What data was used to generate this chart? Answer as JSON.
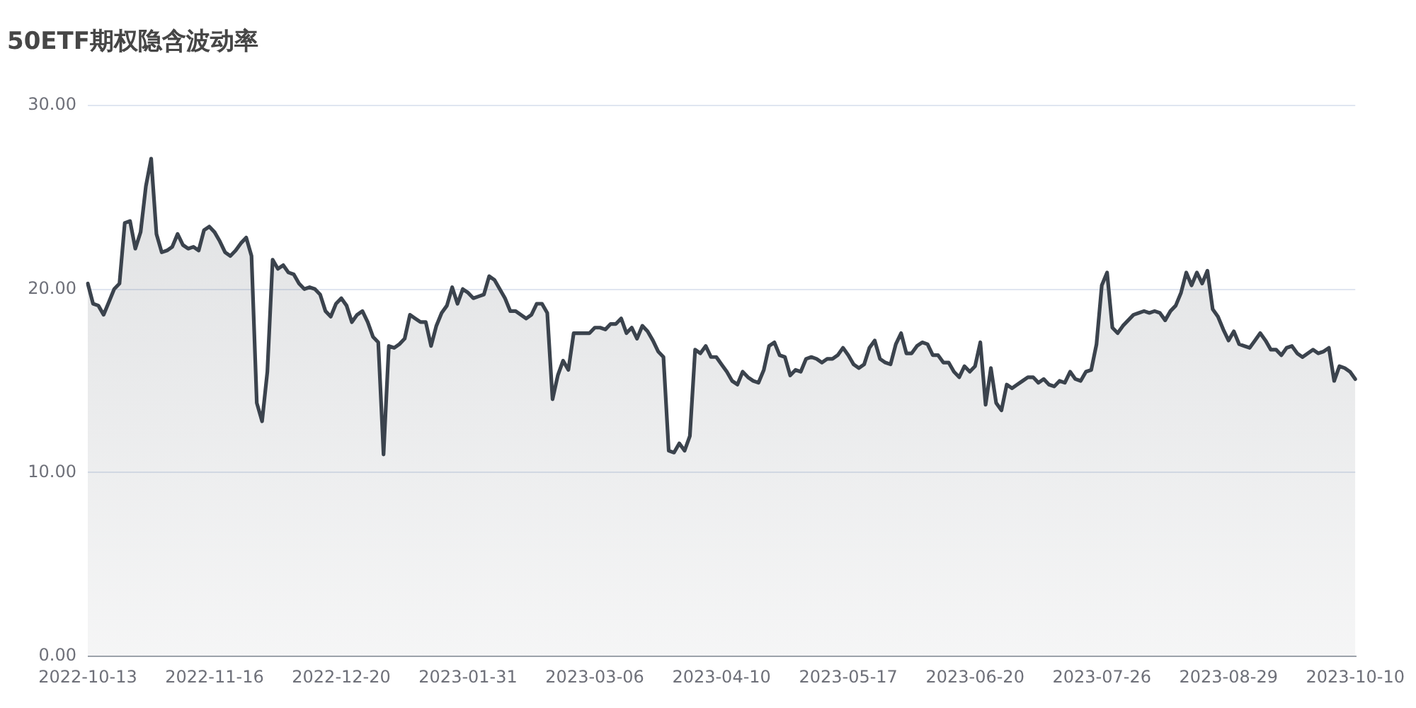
{
  "chart_data": {
    "type": "area",
    "title": "50ETF期权隐含波动率",
    "categories": [
      "2022-10-13",
      null,
      null,
      null,
      null,
      null,
      null,
      null,
      null,
      null,
      null,
      null,
      null,
      null,
      null,
      null,
      null,
      null,
      null,
      null,
      null,
      null,
      null,
      null,
      "2022-11-16",
      null,
      null,
      null,
      null,
      null,
      null,
      null,
      null,
      null,
      null,
      null,
      null,
      null,
      null,
      null,
      null,
      null,
      null,
      null,
      null,
      null,
      null,
      null,
      "2022-12-20",
      null,
      null,
      null,
      null,
      null,
      null,
      null,
      null,
      null,
      null,
      null,
      null,
      null,
      null,
      null,
      null,
      null,
      null,
      null,
      null,
      null,
      null,
      null,
      "2023-01-31",
      null,
      null,
      null,
      null,
      null,
      null,
      null,
      null,
      null,
      null,
      null,
      null,
      null,
      null,
      null,
      null,
      null,
      null,
      null,
      null,
      null,
      null,
      null,
      "2023-03-06",
      null,
      null,
      null,
      null,
      null,
      null,
      null,
      null,
      null,
      null,
      null,
      null,
      null,
      null,
      null,
      null,
      null,
      null,
      null,
      null,
      null,
      null,
      null,
      "2023-04-10",
      null,
      null,
      null,
      null,
      null,
      null,
      null,
      null,
      null,
      null,
      null,
      null,
      null,
      null,
      null,
      null,
      null,
      null,
      null,
      null,
      null,
      null,
      null,
      "2023-05-17",
      null,
      null,
      null,
      null,
      null,
      null,
      null,
      null,
      null,
      null,
      null,
      null,
      null,
      null,
      null,
      null,
      null,
      null,
      null,
      null,
      null,
      null,
      null,
      "2023-06-20",
      null,
      null,
      null,
      null,
      null,
      null,
      null,
      null,
      null,
      null,
      null,
      null,
      null,
      null,
      null,
      null,
      null,
      null,
      null,
      null,
      null,
      null,
      null,
      "2023-07-26",
      null,
      null,
      null,
      null,
      null,
      null,
      null,
      null,
      null,
      null,
      null,
      null,
      null,
      null,
      null,
      null,
      null,
      null,
      null,
      null,
      null,
      null,
      null,
      "2023-08-29",
      null,
      null,
      null,
      null,
      null,
      null,
      null,
      null,
      null,
      null,
      null,
      null,
      null,
      null,
      null,
      null,
      null,
      null,
      null,
      null,
      null,
      null,
      null,
      "2023-10-10"
    ],
    "values": [
      20.3,
      19.2,
      19.1,
      18.6,
      19.3,
      20.0,
      20.3,
      23.6,
      23.7,
      22.2,
      23.1,
      25.6,
      27.1,
      23.0,
      22.0,
      22.1,
      22.3,
      23.0,
      22.4,
      22.2,
      22.3,
      22.1,
      23.2,
      23.4,
      23.1,
      22.6,
      22.0,
      21.8,
      22.1,
      22.5,
      22.8,
      21.8,
      13.8,
      12.8,
      15.5,
      21.6,
      21.1,
      21.3,
      20.9,
      20.8,
      20.3,
      20.0,
      20.1,
      20.0,
      19.7,
      18.8,
      18.5,
      19.2,
      19.5,
      19.1,
      18.2,
      18.6,
      18.8,
      18.2,
      17.4,
      17.1,
      11.0,
      16.9,
      16.8,
      17.0,
      17.3,
      18.6,
      18.4,
      18.2,
      18.2,
      16.9,
      18.0,
      18.7,
      19.1,
      20.1,
      19.2,
      20.0,
      19.8,
      19.5,
      19.6,
      19.7,
      20.7,
      20.5,
      20.0,
      19.5,
      18.8,
      18.8,
      18.6,
      18.4,
      18.6,
      19.2,
      19.2,
      18.7,
      14.0,
      15.3,
      16.1,
      15.6,
      17.6,
      17.6,
      17.6,
      17.6,
      17.9,
      17.9,
      17.8,
      18.1,
      18.1,
      18.4,
      17.6,
      17.9,
      17.3,
      18.0,
      17.7,
      17.2,
      16.6,
      16.3,
      11.2,
      11.1,
      11.6,
      11.2,
      12.0,
      16.7,
      16.5,
      16.9,
      16.3,
      16.3,
      15.9,
      15.5,
      15.0,
      14.8,
      15.5,
      15.2,
      15.0,
      14.9,
      15.6,
      16.9,
      17.1,
      16.4,
      16.3,
      15.3,
      15.6,
      15.5,
      16.2,
      16.3,
      16.2,
      16.0,
      16.2,
      16.2,
      16.4,
      16.8,
      16.4,
      15.9,
      15.7,
      15.9,
      16.8,
      17.2,
      16.2,
      16.0,
      15.9,
      17.0,
      17.6,
      16.5,
      16.5,
      16.9,
      17.1,
      17.0,
      16.4,
      16.4,
      16.0,
      16.0,
      15.5,
      15.2,
      15.8,
      15.5,
      15.8,
      17.1,
      13.7,
      15.7,
      13.8,
      13.4,
      14.8,
      14.6,
      14.8,
      15.0,
      15.2,
      15.2,
      14.9,
      15.1,
      14.8,
      14.7,
      15.0,
      14.9,
      15.5,
      15.1,
      15.0,
      15.5,
      15.6,
      17.0,
      20.2,
      20.9,
      17.9,
      17.6,
      18.0,
      18.3,
      18.6,
      18.7,
      18.8,
      18.7,
      18.8,
      18.7,
      18.3,
      18.8,
      19.1,
      19.8,
      20.9,
      20.2,
      20.9,
      20.3,
      21.0,
      18.9,
      18.5,
      17.8,
      17.2,
      17.7,
      17.0,
      16.9,
      16.8,
      17.2,
      17.6,
      17.2,
      16.7,
      16.7,
      16.4,
      16.8,
      16.9,
      16.5,
      16.3,
      16.5,
      16.7,
      16.5,
      16.6,
      16.8,
      15.0,
      15.8,
      15.7,
      15.5,
      15.1
    ],
    "color": "#3b434d",
    "ylim": [
      0,
      30
    ],
    "yticks": [
      {
        "value": 0,
        "label": "0.00"
      },
      {
        "value": 10,
        "label": "10.00"
      },
      {
        "value": 20,
        "label": "20.00"
      },
      {
        "value": 30,
        "label": "30.00"
      }
    ],
    "grid": "y",
    "marker": "none"
  }
}
